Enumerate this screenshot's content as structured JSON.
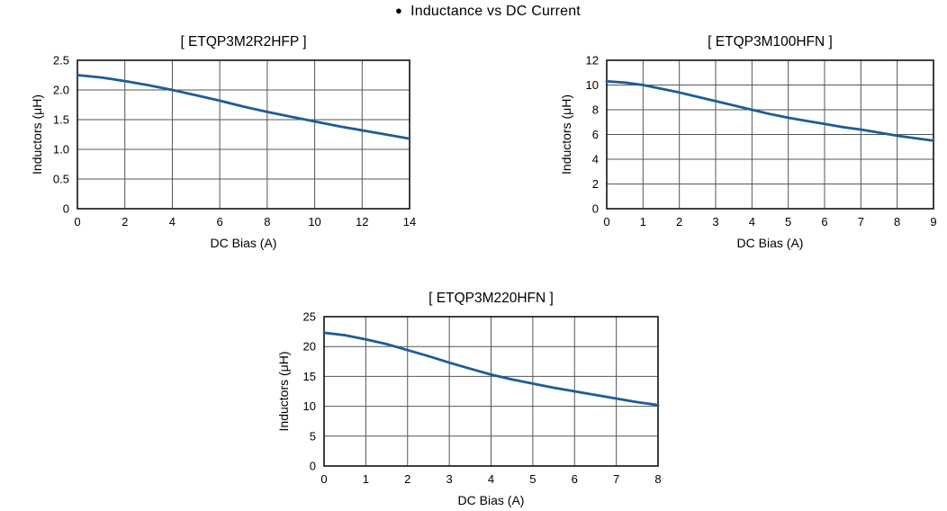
{
  "header": {
    "bullet_icon": "●",
    "title": "Inductance vs DC Current"
  },
  "colors": {
    "background": "#ffffff",
    "curve": "#1e5c96",
    "grid": "#555555",
    "axis_border": "#111111",
    "text": "#000000"
  },
  "chart_data": [
    {
      "type": "line",
      "title": "[ ETQP3M2R2HFP ]",
      "xlabel": "DC Bias (A)",
      "ylabel": "Inductors (μH)",
      "xlim": [
        0,
        14
      ],
      "ylim": [
        0,
        2.5
      ],
      "xticks": [
        0,
        2,
        4,
        6,
        8,
        10,
        12,
        14
      ],
      "xtick_labels": [
        "0",
        "2",
        "4",
        "6",
        "8",
        "10",
        "12",
        "14"
      ],
      "yticks": [
        0,
        0.5,
        1,
        1.5,
        2,
        2.5
      ],
      "ytick_labels": [
        "0",
        "0.5",
        "1.0",
        "1.5",
        "2.0",
        "2.5"
      ],
      "grid": true,
      "legend": "none",
      "series": [
        {
          "name": "ETQP3M2R2HFP",
          "x": [
            0,
            1,
            2,
            3,
            4,
            5,
            6,
            7,
            8,
            9,
            10,
            11,
            12,
            13,
            14
          ],
          "y": [
            2.25,
            2.21,
            2.15,
            2.08,
            2.0,
            1.91,
            1.82,
            1.72,
            1.63,
            1.55,
            1.47,
            1.39,
            1.32,
            1.25,
            1.18
          ]
        }
      ]
    },
    {
      "type": "line",
      "title": "[ ETQP3M100HFN ]",
      "xlabel": "DC Bias (A)",
      "ylabel": "Inductors (μH)",
      "xlim": [
        0,
        9
      ],
      "ylim": [
        0,
        12
      ],
      "xticks": [
        0,
        1,
        2,
        3,
        4,
        5,
        6,
        7,
        8,
        9
      ],
      "xtick_labels": [
        "0",
        "1",
        "2",
        "3",
        "4",
        "5",
        "6",
        "7",
        "8",
        "9"
      ],
      "yticks": [
        0,
        2,
        4,
        6,
        8,
        10,
        12
      ],
      "ytick_labels": [
        "0",
        "2",
        "4",
        "6",
        "8",
        "10",
        "12"
      ],
      "grid": true,
      "legend": "none",
      "series": [
        {
          "name": "ETQP3M100HFN",
          "x": [
            0,
            0.5,
            1,
            1.5,
            2,
            2.5,
            3,
            3.5,
            4,
            4.5,
            5,
            5.5,
            6,
            6.5,
            7,
            7.5,
            8,
            8.5,
            9
          ],
          "y": [
            10.3,
            10.2,
            10.0,
            9.7,
            9.4,
            9.05,
            8.7,
            8.35,
            8.0,
            7.65,
            7.35,
            7.1,
            6.85,
            6.6,
            6.4,
            6.15,
            5.9,
            5.7,
            5.5
          ]
        }
      ]
    },
    {
      "type": "line",
      "title": "[ ETQP3M220HFN ]",
      "xlabel": "DC Bias (A)",
      "ylabel": "Inductors (μH)",
      "xlim": [
        0,
        8
      ],
      "ylim": [
        0,
        25
      ],
      "xticks": [
        0,
        1,
        2,
        3,
        4,
        5,
        6,
        7,
        8
      ],
      "xtick_labels": [
        "0",
        "1",
        "2",
        "3",
        "4",
        "5",
        "6",
        "7",
        "8"
      ],
      "yticks": [
        0,
        5,
        10,
        15,
        20,
        25
      ],
      "ytick_labels": [
        "0",
        "5",
        "10",
        "15",
        "20",
        "25"
      ],
      "grid": true,
      "legend": "none",
      "series": [
        {
          "name": "ETQP3M220HFN",
          "x": [
            0,
            0.5,
            1,
            1.5,
            2,
            2.5,
            3,
            3.5,
            4,
            4.5,
            5,
            5.5,
            6,
            6.5,
            7,
            7.5,
            8
          ],
          "y": [
            22.3,
            21.9,
            21.2,
            20.4,
            19.4,
            18.4,
            17.3,
            16.3,
            15.3,
            14.5,
            13.8,
            13.1,
            12.5,
            11.9,
            11.3,
            10.7,
            10.2
          ]
        }
      ]
    }
  ]
}
